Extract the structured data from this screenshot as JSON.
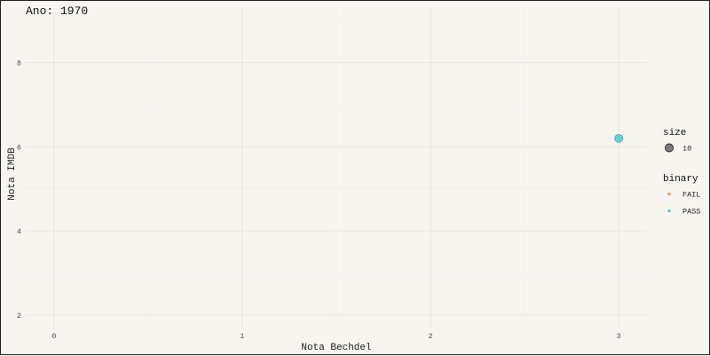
{
  "chart_data": {
    "type": "scatter",
    "title": "Ano: 1970",
    "xlabel": "Nota Bechdel",
    "ylabel": "Nota IMDB",
    "xlim": [
      -0.15,
      3.15
    ],
    "ylim": [
      1.7,
      9.3
    ],
    "x_ticks": [
      0,
      1,
      2,
      3
    ],
    "x_tick_labels": [
      "0",
      "1",
      "2",
      "3"
    ],
    "y_ticks": [
      2,
      4,
      6,
      8
    ],
    "y_tick_labels": [
      "2",
      "4",
      "6",
      "8"
    ],
    "grid": true,
    "points": [
      {
        "x": 3,
        "y": 6.2,
        "binary": "PASS",
        "size": 10
      }
    ],
    "legends": [
      {
        "title": "size",
        "entries": [
          {
            "label": "10",
            "color": "#555555"
          }
        ]
      },
      {
        "title": "binary",
        "entries": [
          {
            "label": "FAIL",
            "color": "#f08a66"
          },
          {
            "label": "PASS",
            "color": "#54c9cf"
          }
        ]
      }
    ],
    "legend_placement": "right",
    "colors": {
      "FAIL": "#f08a66",
      "PASS": "#54c9cf",
      "background": "#f8f5f1"
    }
  }
}
